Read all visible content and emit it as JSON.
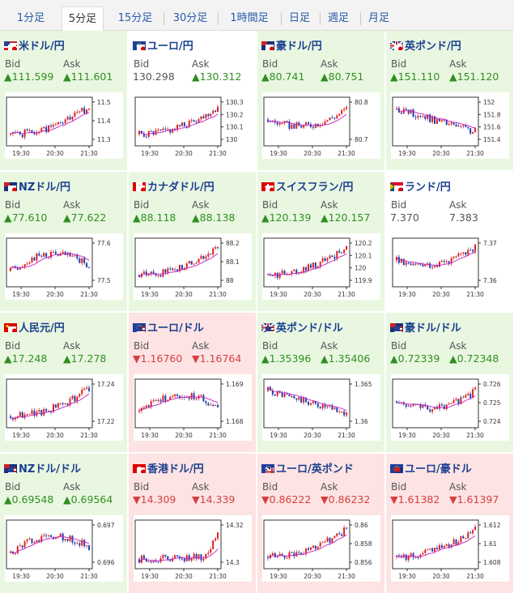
{
  "tabs": [
    "1分足",
    "5分足",
    "15分足",
    "30分足",
    "1時間足",
    "日足",
    "週足",
    "月足"
  ],
  "active_tab": 1,
  "bid_label": "Bid",
  "ask_label": "Ask",
  "time_labels": [
    "19:30",
    "20:30",
    "21:30"
  ],
  "colors": {
    "up": "#2f8f1f",
    "down": "#d64040",
    "candle_up": "#e01f1f",
    "candle_down": "#1f3fb4",
    "ma": "#c020c0"
  },
  "pairs": [
    {
      "name": "米ドル/円",
      "flags": [
        "us",
        "jp"
      ],
      "dir": "up",
      "bid": "▲111.599",
      "ask": "▲111.601",
      "yticks": [
        "11.5",
        "11.4",
        "11.3"
      ],
      "trend": "up",
      "seed": 1
    },
    {
      "name": "ユーロ/円",
      "flags": [
        "eu",
        "jp"
      ],
      "dir": "flat",
      "bid": "130.298",
      "ask": "▲130.312",
      "yticks": [
        "130.3",
        "130.2",
        "130.1",
        "130"
      ],
      "trend": "up",
      "seed": 2
    },
    {
      "name": "豪ドル/円",
      "flags": [
        "au",
        "jp"
      ],
      "dir": "up",
      "bid": "▲80.741",
      "ask": "▲80.751",
      "yticks": [
        "80.8",
        "80.7"
      ],
      "trend": "vee",
      "seed": 3
    },
    {
      "name": "英ポンド/円",
      "flags": [
        "gb",
        "jp"
      ],
      "dir": "up",
      "bid": "▲151.110",
      "ask": "▲151.120",
      "yticks": [
        "152",
        "151.8",
        "151.6",
        "151.4"
      ],
      "trend": "down",
      "seed": 4
    },
    {
      "name": "NZドル/円",
      "flags": [
        "nz",
        "jp"
      ],
      "dir": "up",
      "bid": "▲77.610",
      "ask": "▲77.622",
      "yticks": [
        "77.6",
        "77.5"
      ],
      "trend": "hill",
      "seed": 5
    },
    {
      "name": "カナダドル/円",
      "flags": [
        "ca",
        "jp"
      ],
      "dir": "up",
      "bid": "▲88.118",
      "ask": "▲88.138",
      "yticks": [
        "88.2",
        "88.1",
        "88"
      ],
      "trend": "up",
      "seed": 6
    },
    {
      "name": "スイスフラン/円",
      "flags": [
        "ch",
        "jp"
      ],
      "dir": "up",
      "bid": "▲120.139",
      "ask": "▲120.157",
      "yticks": [
        "120.2",
        "120.1",
        "120",
        "119.9"
      ],
      "trend": "up",
      "seed": 7
    },
    {
      "name": "ランド/円",
      "flags": [
        "za",
        "jp"
      ],
      "dir": "flat",
      "bid": "7.370",
      "ask": "7.383",
      "yticks": [
        "7.37",
        "7.36"
      ],
      "trend": "dip",
      "seed": 8
    },
    {
      "name": "人民元/円",
      "flags": [
        "cn",
        "jp"
      ],
      "dir": "up",
      "bid": "▲17.248",
      "ask": "▲17.278",
      "yticks": [
        "17.24",
        "17.22"
      ],
      "trend": "up",
      "seed": 9
    },
    {
      "name": "ユーロ/ドル",
      "flags": [
        "eu",
        "us"
      ],
      "dir": "down",
      "bid": "▼1.16760",
      "ask": "▼1.16764",
      "yticks": [
        "1.169",
        "1.168"
      ],
      "trend": "hill",
      "seed": 10
    },
    {
      "name": "英ポンド/ドル",
      "flags": [
        "gb",
        "us"
      ],
      "dir": "up",
      "bid": "▲1.35396",
      "ask": "▲1.35406",
      "yticks": [
        "1.365",
        "1.36"
      ],
      "trend": "down",
      "seed": 11
    },
    {
      "name": "豪ドル/ドル",
      "flags": [
        "au",
        "us"
      ],
      "dir": "up",
      "bid": "▲0.72339",
      "ask": "▲0.72348",
      "yticks": [
        "0.726",
        "0.725",
        "0.724"
      ],
      "trend": "vee",
      "seed": 12
    },
    {
      "name": "NZドル/ドル",
      "flags": [
        "nz",
        "us"
      ],
      "dir": "up",
      "bid": "▲0.69548",
      "ask": "▲0.69564",
      "yticks": [
        "0.697",
        "0.696"
      ],
      "trend": "hill",
      "seed": 13
    },
    {
      "name": "香港ドル/円",
      "flags": [
        "hk",
        "jp"
      ],
      "dir": "down",
      "bid": "▼14.309",
      "ask": "▼14.339",
      "yticks": [
        "14.32",
        "14.3"
      ],
      "trend": "flatup",
      "seed": 14
    },
    {
      "name": "ユーロ/英ポンド",
      "flags": [
        "eu",
        "gb"
      ],
      "dir": "down",
      "bid": "▼0.86222",
      "ask": "▼0.86232",
      "yticks": [
        "0.86",
        "0.858",
        "0.856"
      ],
      "trend": "up",
      "seed": 15
    },
    {
      "name": "ユーロ/豪ドル",
      "flags": [
        "eu",
        "au"
      ],
      "dir": "down",
      "bid": "▼1.61382",
      "ask": "▼1.61397",
      "yticks": [
        "1.612",
        "1.61",
        "1.608"
      ],
      "trend": "up",
      "seed": 16
    }
  ]
}
